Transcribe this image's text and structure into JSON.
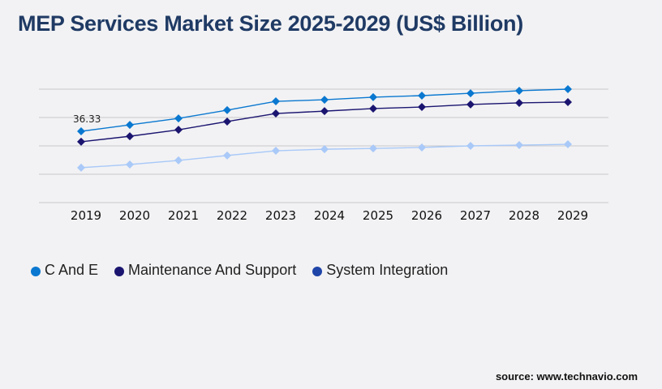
{
  "title": "MEP Services Market Size 2025-2029 (US$ Billion)",
  "source": "source: www.technavio.com",
  "chart_data": {
    "type": "line",
    "title": "MEP Services Market Size 2025-2029 (US$ Billion)",
    "categories": [
      "2019",
      "2020",
      "2021",
      "2022",
      "2023",
      "2024",
      "2025",
      "2026",
      "2027",
      "2028",
      "2029"
    ],
    "ylim": [
      0,
      57.8
    ],
    "grid": true,
    "legend": "bottom-left",
    "annotations": [
      {
        "series": "C And E",
        "x": "2019",
        "text": "36.33"
      }
    ],
    "series": [
      {
        "name": "C And E",
        "color": "#0a78d0",
        "legend_color": "#0a78d0",
        "values": [
          36.33,
          39.6,
          42.9,
          47.1,
          51.6,
          52.4,
          53.7,
          54.5,
          55.7,
          57.0,
          57.8
        ]
      },
      {
        "name": "Maintenance And Support",
        "color": "#1b1570",
        "legend_color": "#1b1570",
        "values": [
          31.0,
          33.8,
          37.1,
          41.3,
          45.4,
          46.6,
          47.9,
          48.7,
          50.0,
          50.8,
          51.2
        ]
      },
      {
        "name": "System Integration",
        "color": "#a9c9f8",
        "legend_color": "#1f45a8",
        "values": [
          17.8,
          19.4,
          21.5,
          24.0,
          26.4,
          27.2,
          27.6,
          28.1,
          28.9,
          29.3,
          29.7
        ]
      }
    ]
  }
}
